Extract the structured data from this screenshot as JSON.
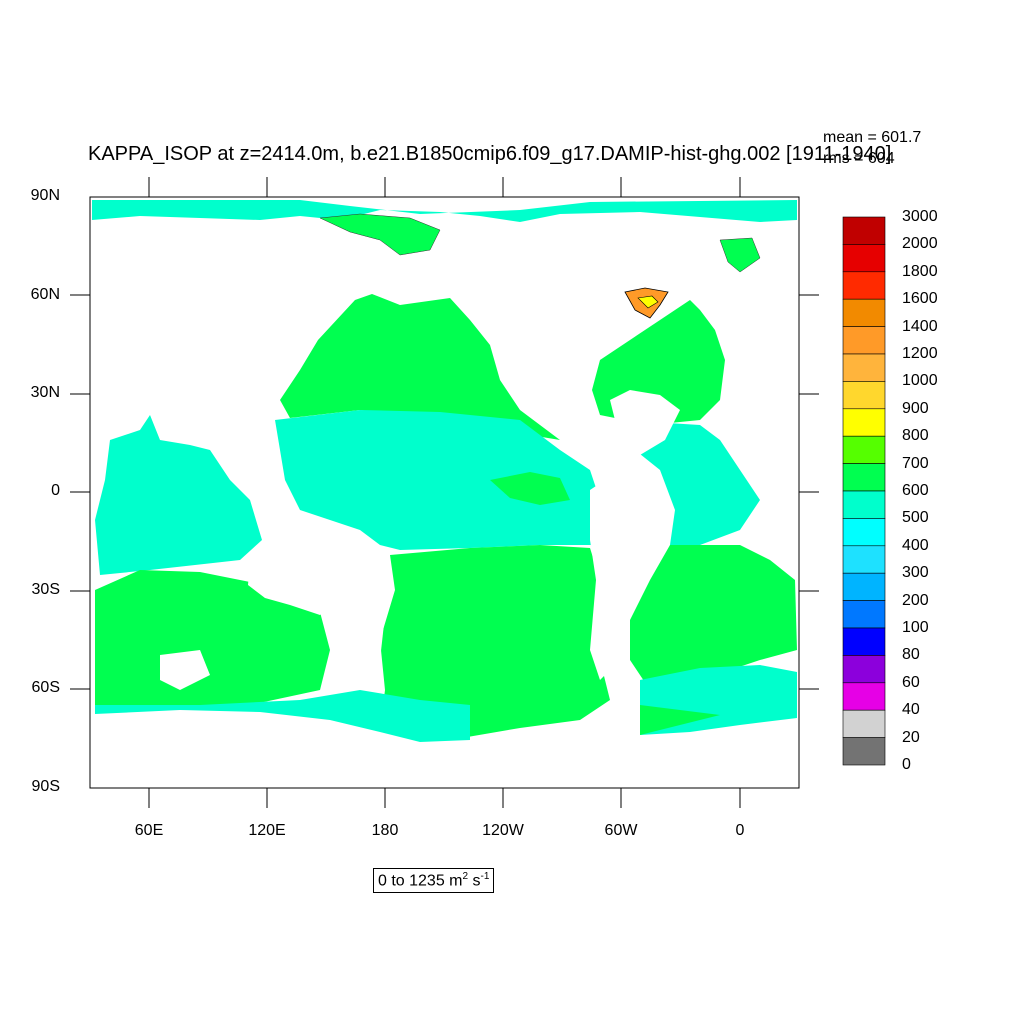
{
  "title": "KAPPA_ISOP at z=2414.0m, b.e21.B1850cmip6.f09_g17.DAMIP-hist-ghg.002 [1911-1940]",
  "stats": {
    "mean": "mean = 601.7",
    "rms": "rms = 604"
  },
  "range_label": {
    "text": "0 to 1235 m",
    "unit_sup1": "2",
    "mid": " s",
    "unit_sup2": "-1"
  },
  "map": {
    "projection": "cylindrical equidistant",
    "lon_range": [
      30,
      390
    ],
    "lat_range": [
      -90,
      90
    ],
    "lat_labels": [
      "90N",
      "60N",
      "30N",
      "0",
      "30S",
      "60S",
      "90S"
    ],
    "lon_labels": [
      "60E",
      "120E",
      "180",
      "120W",
      "60W",
      "0"
    ],
    "land_color": "#ffffff",
    "regions": [
      {
        "name": "arctic",
        "color": "#00ffcc"
      },
      {
        "name": "north-pacific",
        "color": "#00ff50"
      },
      {
        "name": "north-atlantic",
        "color": "#00ff50"
      },
      {
        "name": "indo-pacific-tropics",
        "color": "#00ffcc"
      },
      {
        "name": "southern-ocean",
        "color": "#00ff50"
      },
      {
        "name": "labrador-sea-high",
        "color": "#ff9a28"
      }
    ]
  },
  "colorbar": {
    "levels": [
      "3000",
      "2000",
      "1800",
      "1600",
      "1400",
      "1200",
      "1000",
      "900",
      "800",
      "700",
      "600",
      "500",
      "400",
      "300",
      "200",
      "100",
      "80",
      "60",
      "40",
      "20",
      "0"
    ],
    "colors": [
      "#c00000",
      "#e60000",
      "#ff2a00",
      "#f28a00",
      "#ff9a28",
      "#ffb43c",
      "#ffd72d",
      "#ffff00",
      "#55ff00",
      "#00ff50",
      "#00ffcc",
      "#00ffff",
      "#1ee1ff",
      "#00b4ff",
      "#0078ff",
      "#0000ff",
      "#8c00dc",
      "#e600e6",
      "#d2d2d2",
      "#737373"
    ]
  }
}
